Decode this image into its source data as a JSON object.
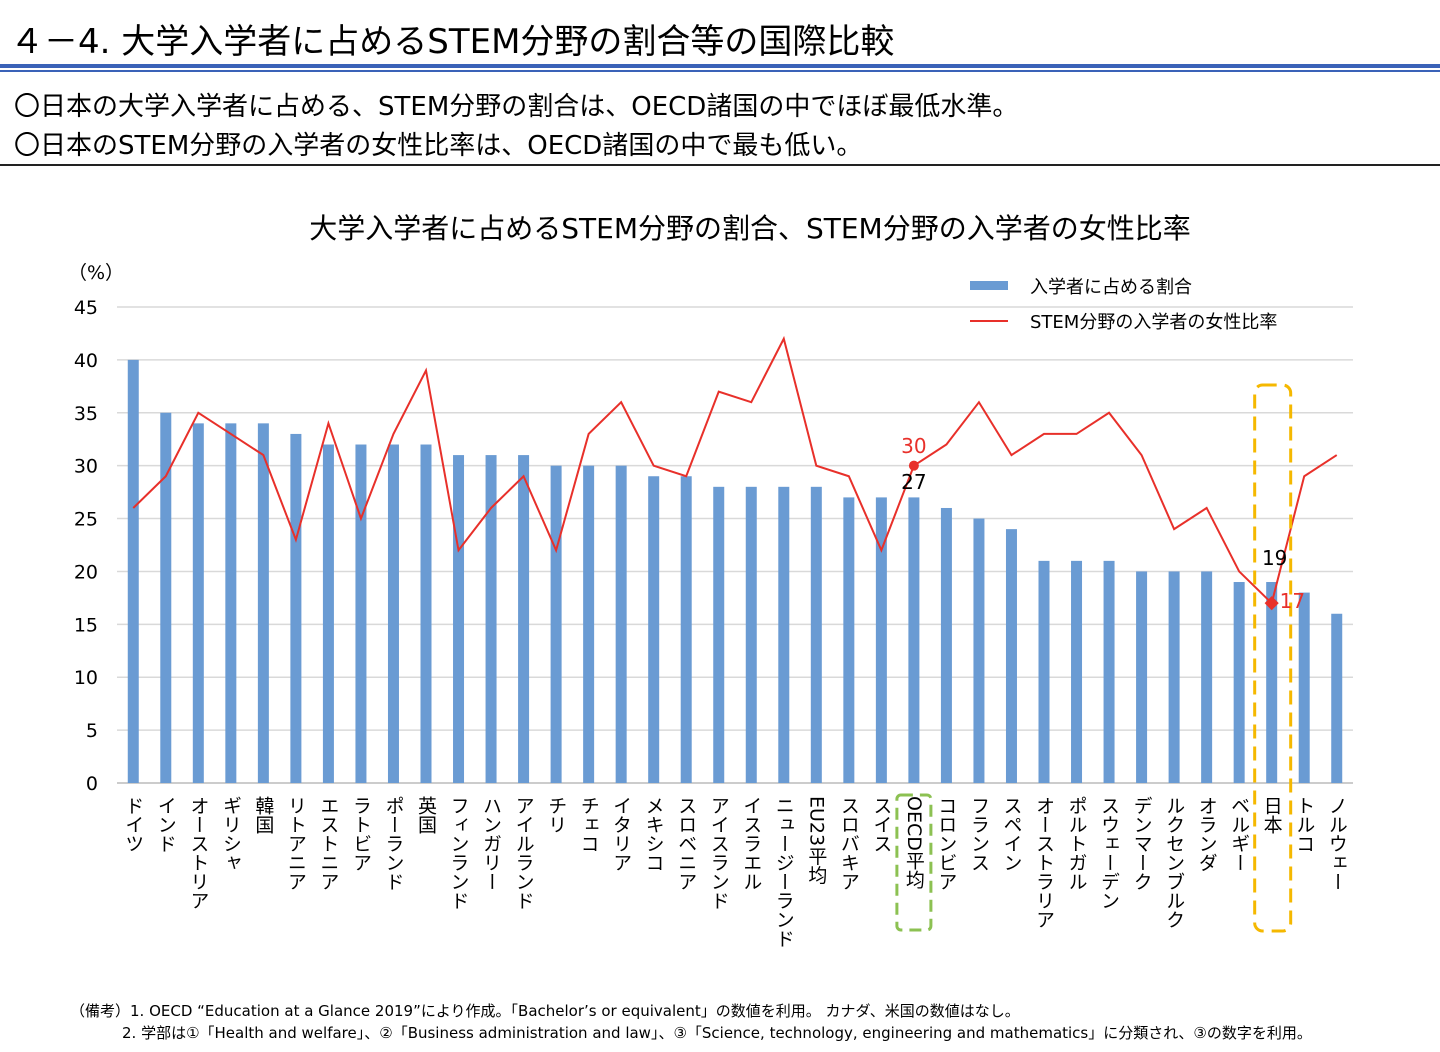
{
  "header": {
    "title": "４－4. 大学入学者に占めるSTEM分野の割合等の国際比較",
    "bullets": [
      "〇日本の大学入学者に占める、STEM分野の割合は、OECD諸国の中でほぼ最低水準。",
      "〇日本のSTEM分野の入学者の女性比率は、OECD諸国の中で最も低い。"
    ]
  },
  "notes": [
    "（備考）1. OECD “Education at a Glance 2019”により作成。「Bachelor’s or equivalent」の数値を利用。 カナダ、米国の数値はなし。",
    "2. 学部は①「Health and welfare」、②「Business administration and law」、③「Science, technology, engineering and mathematics」に分類され、③の数字を利用。"
  ],
  "chart_data": {
    "type": "bar+line",
    "title": "大学入学者に占めるSTEM分野の割合、STEM分野の入学者の女性比率",
    "ylabel": "（%）",
    "ylim": [
      0,
      45
    ],
    "yticks": [
      0,
      5,
      10,
      15,
      20,
      25,
      30,
      35,
      40,
      45
    ],
    "grid": true,
    "legend": "top-right",
    "categories": [
      "ドイツ",
      "インド",
      "オーストリア",
      "ギリシャ",
      "韓国",
      "リトアニア",
      "エストニア",
      "ラトビア",
      "ポーランド",
      "英国",
      "フィンランド",
      "ハンガリー",
      "アイルランド",
      "チリ",
      "チェコ",
      "イタリア",
      "メキシコ",
      "スロベニア",
      "アイスランド",
      "イスラエル",
      "ニュージーランド",
      "EU23平均",
      "スロバキア",
      "スイス",
      "OECD平均",
      "コロンビア",
      "フランス",
      "スペイン",
      "オーストラリア",
      "ポルトガル",
      "スウェーデン",
      "デンマーク",
      "ルクセンブルク",
      "オランダ",
      "ベルギー",
      "日本",
      "トルコ",
      "ノルウェー"
    ],
    "series": [
      {
        "name": "入学者に占める割合",
        "type": "bar",
        "color": "#6a9bd3",
        "values": [
          40,
          35,
          34,
          34,
          34,
          33,
          32,
          32,
          32,
          32,
          31,
          31,
          31,
          30,
          30,
          30,
          29,
          29,
          28,
          28,
          28,
          28,
          27,
          27,
          27,
          26,
          25,
          24,
          21,
          21,
          21,
          20,
          20,
          20,
          19,
          19,
          18,
          16
        ]
      },
      {
        "name": "STEM分野の入学者の女性比率",
        "type": "line",
        "color": "#e8302a",
        "values": [
          26,
          29,
          35,
          33,
          31,
          23,
          34,
          25,
          33,
          39,
          22,
          26,
          29,
          22,
          33,
          36,
          30,
          29,
          37,
          36,
          42,
          30,
          29,
          22,
          30,
          32,
          36,
          31,
          33,
          33,
          35,
          31,
          24,
          26,
          20,
          17,
          29,
          31
        ]
      }
    ],
    "annotations": [
      {
        "category": "OECD平均",
        "bar_label": "27",
        "line_label": "30"
      },
      {
        "category": "日本",
        "bar_label": "19",
        "line_label": "17"
      }
    ],
    "highlight_colors": {
      "oecd": "#8cc152",
      "japan": "#f5b800"
    }
  }
}
